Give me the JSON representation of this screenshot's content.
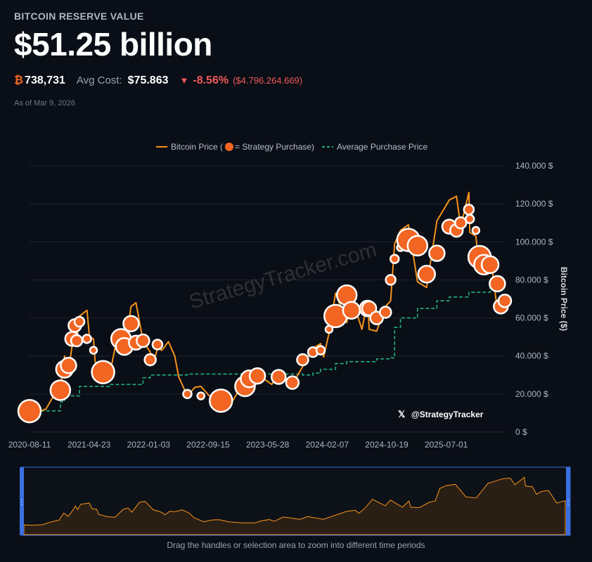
{
  "header": {
    "eyebrow": "BITCOIN RESERVE VALUE",
    "value": "$51.25 billion",
    "btc_symbol": "₿",
    "btc_holdings": "738,731",
    "avg_cost_label": "Avg Cost:",
    "avg_cost": "$75.863",
    "change_arrow": "▼",
    "change_pct": "-8.56%",
    "change_usd": "($4.796.264.669)",
    "as_of": "As of Mar 9, 2026"
  },
  "legend": {
    "price_label": "Bitcoin Price (",
    "purchase_label": " = Strategy Purchase)",
    "avg_label": "Average Purchase Price"
  },
  "watermark": "StrategyTracker.com",
  "handle": "@StrategyTracker",
  "hint": "Drag the handles or selection area to zoom into different time periods",
  "colors": {
    "price": "#f7931a",
    "purchase": "#f26522",
    "avg": "#22b07d",
    "grid": "#1e2430",
    "brush": "#3b6fe0"
  },
  "chart_data": {
    "type": "line",
    "ylabel": "Bitcoin Price ($)",
    "ylim": [
      0,
      140000
    ],
    "y_ticks": [
      "0 $",
      "20.000 $",
      "40.000 $",
      "60.000 $",
      "80.000 $",
      "100.000 $",
      "120.000 $",
      "140.000 $"
    ],
    "x_ticks": [
      "2020-08-11",
      "2021-04-23",
      "2022-01-03",
      "2022-09-15",
      "2023-05-28",
      "2024-02-07",
      "2024-10-19",
      "2025-07-01"
    ],
    "series": [
      {
        "name": "Bitcoin Price",
        "points": [
          [
            "2020-08-11",
            11500
          ],
          [
            "2020-09-15",
            10800
          ],
          [
            "2020-10-20",
            12000
          ],
          [
            "2020-11-20",
            18500
          ],
          [
            "2020-12-21",
            23000
          ],
          [
            "2021-01-08",
            40000
          ],
          [
            "2021-01-25",
            32000
          ],
          [
            "2021-02-10",
            46000
          ],
          [
            "2021-02-21",
            57000
          ],
          [
            "2021-03-01",
            48000
          ],
          [
            "2021-03-13",
            61000
          ],
          [
            "2021-04-14",
            64000
          ],
          [
            "2021-04-25",
            50000
          ],
          [
            "2021-05-12",
            49000
          ],
          [
            "2021-05-19",
            37000
          ],
          [
            "2021-06-22",
            31000
          ],
          [
            "2021-07-20",
            30000
          ],
          [
            "2021-08-20",
            49000
          ],
          [
            "2021-09-07",
            52000
          ],
          [
            "2021-09-21",
            42000
          ],
          [
            "2021-10-20",
            66000
          ],
          [
            "2021-11-10",
            68000
          ],
          [
            "2021-12-10",
            48000
          ],
          [
            "2022-01-10",
            42000
          ],
          [
            "2022-01-24",
            36000
          ],
          [
            "2022-02-10",
            44000
          ],
          [
            "2022-03-01",
            43000
          ],
          [
            "2022-03-29",
            47500
          ],
          [
            "2022-04-25",
            40000
          ],
          [
            "2022-05-12",
            29000
          ],
          [
            "2022-06-18",
            19000
          ],
          [
            "2022-07-20",
            23500
          ],
          [
            "2022-08-15",
            24000
          ],
          [
            "2022-09-20",
            19000
          ],
          [
            "2022-11-09",
            16500
          ],
          [
            "2022-12-30",
            16500
          ],
          [
            "2023-01-20",
            21000
          ],
          [
            "2023-02-20",
            24500
          ],
          [
            "2023-03-10",
            20000
          ],
          [
            "2023-04-14",
            30500
          ],
          [
            "2023-06-15",
            25000
          ],
          [
            "2023-07-14",
            31500
          ],
          [
            "2023-09-11",
            25000
          ],
          [
            "2023-10-25",
            34500
          ],
          [
            "2023-12-08",
            44000
          ],
          [
            "2024-01-10",
            46500
          ],
          [
            "2024-01-23",
            39500
          ],
          [
            "2024-02-15",
            52000
          ],
          [
            "2024-03-14",
            73000
          ],
          [
            "2024-05-01",
            57500
          ],
          [
            "2024-05-21",
            71000
          ],
          [
            "2024-07-05",
            54000
          ],
          [
            "2024-07-29",
            69000
          ],
          [
            "2024-08-05",
            54000
          ],
          [
            "2024-09-06",
            53000
          ],
          [
            "2024-10-14",
            66000
          ],
          [
            "2024-11-05",
            69000
          ],
          [
            "2024-11-22",
            99000
          ],
          [
            "2024-12-17",
            106000
          ],
          [
            "2025-01-20",
            109000
          ],
          [
            "2025-02-28",
            79000
          ],
          [
            "2025-04-08",
            76000
          ],
          [
            "2025-05-22",
            111000
          ],
          [
            "2025-07-14",
            122000
          ],
          [
            "2025-08-14",
            124000
          ],
          [
            "2025-09-01",
            108000
          ],
          [
            "2025-10-06",
            126000
          ],
          [
            "2025-10-10",
            105000
          ],
          [
            "2025-11-05",
            103000
          ],
          [
            "2025-11-21",
            85000
          ],
          [
            "2025-12-10",
            92000
          ],
          [
            "2026-01-05",
            94000
          ],
          [
            "2026-02-05",
            64000
          ],
          [
            "2026-02-20",
            67000
          ],
          [
            "2026-03-09",
            69500
          ]
        ]
      },
      {
        "name": "Average Purchase Price",
        "points": [
          [
            "2020-08-11",
            11100
          ],
          [
            "2020-12-21",
            15900
          ],
          [
            "2021-01-08",
            19000
          ],
          [
            "2021-03-13",
            24000
          ],
          [
            "2021-07-20",
            25000
          ],
          [
            "2021-12-10",
            28500
          ],
          [
            "2022-01-10",
            30000
          ],
          [
            "2022-06-18",
            30500
          ],
          [
            "2023-02-20",
            30500
          ],
          [
            "2023-10-25",
            30000
          ],
          [
            "2023-12-08",
            31000
          ],
          [
            "2024-01-10",
            33000
          ],
          [
            "2024-03-14",
            36000
          ],
          [
            "2024-05-01",
            37000
          ],
          [
            "2024-09-06",
            38500
          ],
          [
            "2024-11-05",
            39000
          ],
          [
            "2024-11-22",
            55000
          ],
          [
            "2024-12-17",
            60000
          ],
          [
            "2025-02-28",
            65000
          ],
          [
            "2025-05-22",
            69000
          ],
          [
            "2025-07-14",
            71000
          ],
          [
            "2025-10-06",
            73500
          ],
          [
            "2026-01-05",
            75500
          ],
          [
            "2026-03-09",
            75863
          ]
        ]
      },
      {
        "name": "Strategy Purchase",
        "points": [
          [
            "2020-08-11",
            11000
          ],
          [
            "2020-12-21",
            22000
          ],
          [
            "2021-01-08",
            33000
          ],
          [
            "2021-01-25",
            35000
          ],
          [
            "2021-02-10",
            49000
          ],
          [
            "2021-02-21",
            56000
          ],
          [
            "2021-03-01",
            48000
          ],
          [
            "2021-03-13",
            58000
          ],
          [
            "2021-04-14",
            49000
          ],
          [
            "2021-05-12",
            43000
          ],
          [
            "2021-06-22",
            31500
          ],
          [
            "2021-09-07",
            49000
          ],
          [
            "2021-09-21",
            45000
          ],
          [
            "2021-10-20",
            57000
          ],
          [
            "2021-11-10",
            47000
          ],
          [
            "2021-12-10",
            48000
          ],
          [
            "2022-01-10",
            38000
          ],
          [
            "2022-02-10",
            46000
          ],
          [
            "2022-06-18",
            20000
          ],
          [
            "2022-08-15",
            19000
          ],
          [
            "2022-11-09",
            16500
          ],
          [
            "2023-02-20",
            24000
          ],
          [
            "2023-03-10",
            28000
          ],
          [
            "2023-04-14",
            29500
          ],
          [
            "2023-07-14",
            29000
          ],
          [
            "2023-09-11",
            26000
          ],
          [
            "2023-10-25",
            38000
          ],
          [
            "2023-12-08",
            42000
          ],
          [
            "2024-01-10",
            43000
          ],
          [
            "2024-02-15",
            54000
          ],
          [
            "2024-03-14",
            61000
          ],
          [
            "2024-05-01",
            72000
          ],
          [
            "2024-05-21",
            64000
          ],
          [
            "2024-07-29",
            65000
          ],
          [
            "2024-08-05",
            65000
          ],
          [
            "2024-09-06",
            60000
          ],
          [
            "2024-10-14",
            63000
          ],
          [
            "2024-11-05",
            80000
          ],
          [
            "2024-11-22",
            91000
          ],
          [
            "2024-12-17",
            97000
          ],
          [
            "2025-01-20",
            101000
          ],
          [
            "2025-02-28",
            98000
          ],
          [
            "2025-04-08",
            83000
          ],
          [
            "2025-05-22",
            94000
          ],
          [
            "2025-07-14",
            108000
          ],
          [
            "2025-08-14",
            106000
          ],
          [
            "2025-09-01",
            110000
          ],
          [
            "2025-10-06",
            117000
          ],
          [
            "2025-10-10",
            112000
          ],
          [
            "2025-11-05",
            106000
          ],
          [
            "2025-11-21",
            92000
          ],
          [
            "2025-12-10",
            88000
          ],
          [
            "2026-01-05",
            88000
          ],
          [
            "2026-02-05",
            78000
          ],
          [
            "2026-02-20",
            66000
          ],
          [
            "2026-03-09",
            69000
          ]
        ]
      }
    ]
  }
}
